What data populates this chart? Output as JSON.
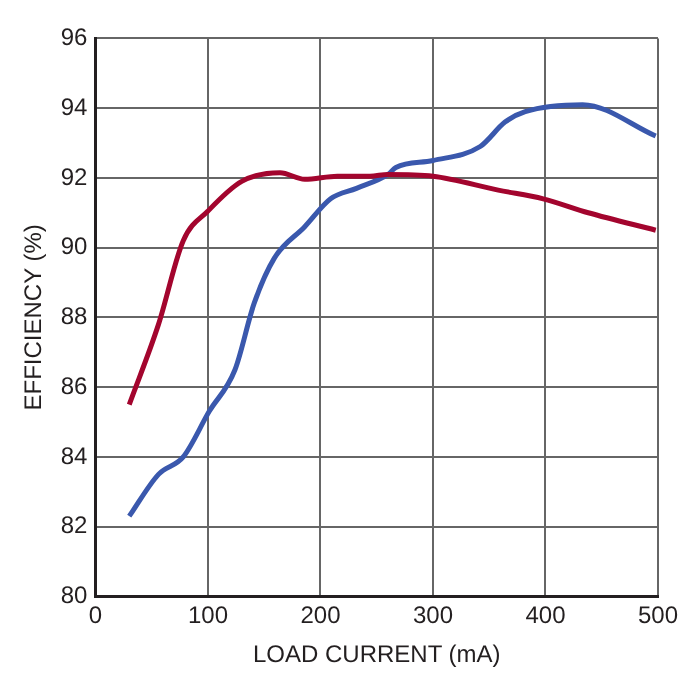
{
  "chart_data": {
    "type": "line",
    "xlabel": "LOAD CURRENT (mA)",
    "ylabel": "EFFICIENCY (%)",
    "xlim": [
      0,
      500
    ],
    "xticks": [
      0,
      100,
      200,
      300,
      400,
      500
    ],
    "ylim": [
      80,
      96
    ],
    "yticks": [
      80,
      82,
      84,
      86,
      88,
      90,
      92,
      94,
      96
    ],
    "grid": true,
    "legend": false,
    "marker": "none",
    "line_style": "solid",
    "series": [
      {
        "color": "#a3052e",
        "x": [
          30,
          56,
          78,
          100,
          130,
          164,
          186,
          215,
          244,
          260,
          300,
          358,
          398,
          438,
          498
        ],
        "values": [
          85.5,
          87.8,
          90.2,
          91.05,
          91.9,
          92.15,
          91.96,
          92.05,
          92.05,
          92.1,
          92.05,
          91.65,
          91.4,
          91.0,
          90.5
        ]
      },
      {
        "color": "#3a58ad",
        "x": [
          30,
          56,
          78,
          101,
          124,
          141,
          159,
          186,
          209,
          232,
          260,
          267,
          300,
          342,
          364,
          382,
          433,
          498
        ],
        "values": [
          82.3,
          83.5,
          84.0,
          85.3,
          86.5,
          88.4,
          89.7,
          90.6,
          91.4,
          91.7,
          92.1,
          92.3,
          92.5,
          92.9,
          93.6,
          93.9,
          94.1,
          93.2
        ]
      }
    ]
  }
}
